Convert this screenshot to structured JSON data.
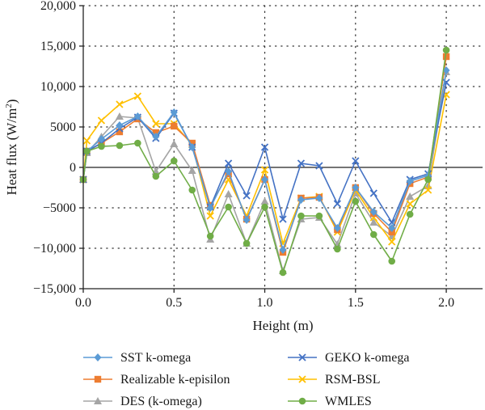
{
  "chart_data": {
    "type": "line",
    "xlabel": "Height (m)",
    "ylabel_main": "Heat flux (W/m",
    "ylabel_sup": "2",
    "ylabel_close": ")",
    "xlim": [
      0,
      2.2
    ],
    "ylim": [
      -15000,
      20000
    ],
    "xticks": [
      0,
      0.5,
      1.0,
      1.5,
      2.0
    ],
    "xtick_labels": [
      "0.0",
      "0.5",
      "1.0",
      "1.5",
      "2.0"
    ],
    "yticks": [
      -15000,
      -10000,
      -5000,
      0,
      5000,
      10000,
      15000,
      20000
    ],
    "ytick_labels": [
      "−15,000",
      "−10,000",
      "−5000",
      "0",
      "5000",
      "10,000",
      "15,000",
      "20,000"
    ],
    "grid": "dotted",
    "legend_position": "bottom",
    "x": [
      0,
      0.02,
      0.1,
      0.2,
      0.3,
      0.4,
      0.5,
      0.6,
      0.7,
      0.8,
      0.9,
      1.0,
      1.1,
      1.2,
      1.3,
      1.4,
      1.5,
      1.6,
      1.7,
      1.8,
      1.9,
      2.0
    ],
    "series": [
      {
        "name": "SST k-omega",
        "color": "#5b9bd5",
        "marker": "diamond",
        "values": [
          -1500,
          2000,
          3500,
          5200,
          6300,
          3800,
          6800,
          2500,
          -5000,
          -500,
          -6500,
          -1500,
          -10200,
          -4000,
          -3800,
          -7500,
          -2500,
          -5500,
          -7500,
          -1700,
          -1000,
          12000
        ]
      },
      {
        "name": "GEKO k-omega",
        "color": "#4472c4",
        "marker": "x",
        "values": [
          -1500,
          2000,
          3000,
          4800,
          6200,
          3600,
          6700,
          2500,
          -4900,
          500,
          -3500,
          2500,
          -6400,
          500,
          200,
          -4500,
          800,
          -3200,
          -6800,
          -1500,
          -800,
          10500
        ]
      },
      {
        "name": "Realizable k-episilon",
        "color": "#ed7d31",
        "marker": "square",
        "values": [
          -1500,
          2000,
          3000,
          4400,
          6000,
          4300,
          5100,
          3000,
          -4700,
          -800,
          -6400,
          -1500,
          -10500,
          -3800,
          -3700,
          -7700,
          -2500,
          -5700,
          -8000,
          -2000,
          -1200,
          13700
        ]
      },
      {
        "name": "RSM-BSL",
        "color": "#ffc000",
        "marker": "x",
        "values": [
          -1500,
          3300,
          5800,
          7800,
          8800,
          5400,
          5400,
          2800,
          -6000,
          -1500,
          -6000,
          -300,
          -9400,
          -3800,
          -3600,
          -8000,
          -2800,
          -6200,
          -9200,
          -4500,
          -2800,
          9000
        ]
      },
      {
        "name": "DES (k-omega)",
        "color": "#a5a5a5",
        "marker": "triangle",
        "values": [
          -1500,
          1800,
          3800,
          6300,
          6100,
          -500,
          2900,
          -400,
          -8900,
          -3300,
          -9400,
          -4200,
          -12800,
          -6400,
          -6200,
          -9500,
          -3200,
          -6800,
          -8500,
          -3600,
          -2300,
          11800
        ]
      },
      {
        "name": "WMLES",
        "color": "#70ad47",
        "marker": "circle",
        "values": [
          -1500,
          2000,
          2600,
          2700,
          3000,
          -1100,
          800,
          -2800,
          -8500,
          -4900,
          -9400,
          -4900,
          -13000,
          -6000,
          -6000,
          -10100,
          -4200,
          -8300,
          -11600,
          -5800,
          -1500,
          14500
        ]
      }
    ]
  }
}
